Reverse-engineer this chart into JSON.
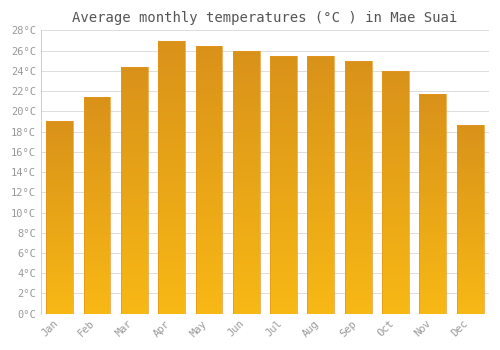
{
  "title": "Average monthly temperatures (°C ) in Mae Suai",
  "months": [
    "Jan",
    "Feb",
    "Mar",
    "Apr",
    "May",
    "Jun",
    "Jul",
    "Aug",
    "Sep",
    "Oct",
    "Nov",
    "Dec"
  ],
  "values": [
    19.0,
    21.4,
    24.4,
    27.0,
    26.5,
    26.0,
    25.5,
    25.5,
    25.0,
    24.0,
    21.7,
    18.7
  ],
  "bar_color": "#F5A623",
  "bar_edge_color": "#E8941A",
  "ylim_max": 28,
  "ytick_step": 2,
  "background_color": "#ffffff",
  "grid_color": "#dddddd",
  "title_fontsize": 10,
  "tick_fontsize": 7.5,
  "tick_color": "#999999",
  "title_color": "#555555"
}
